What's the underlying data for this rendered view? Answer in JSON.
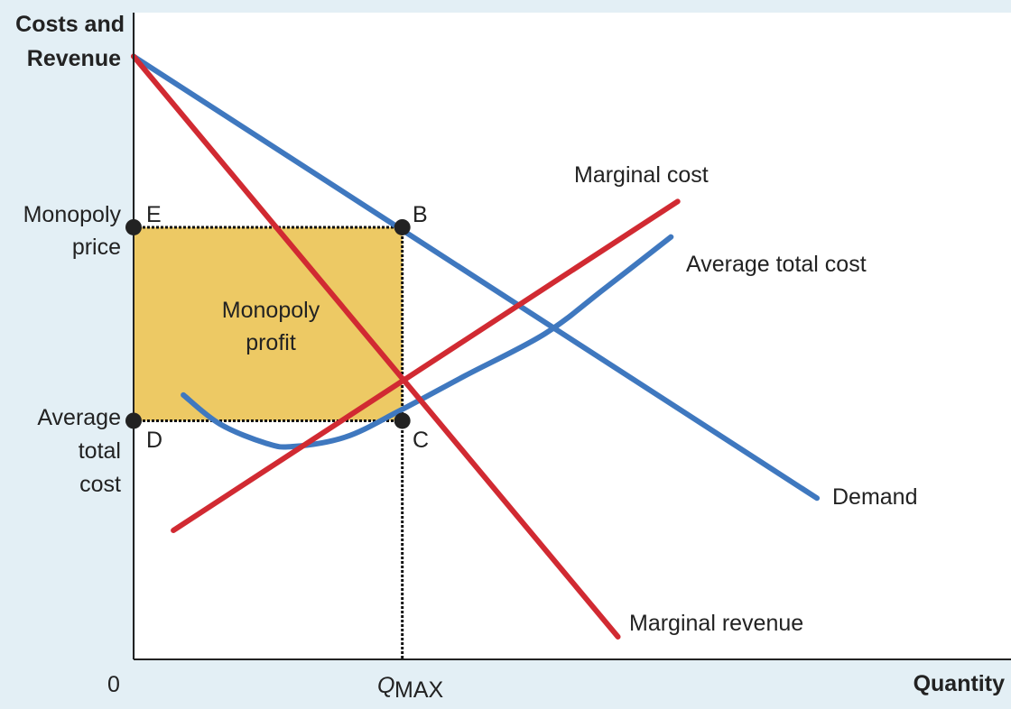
{
  "chart_data": {
    "type": "line",
    "title": "",
    "ylabel": [
      "Costs and",
      "Revenue"
    ],
    "xlabel": "Quantity",
    "origin_label": "0",
    "xlim": [
      0,
      10
    ],
    "ylim": [
      0,
      10
    ],
    "x_tick_label": {
      "main": "Q",
      "sub": "MAX"
    },
    "y_tick_labels": {
      "monopoly_price": [
        "Monopoly",
        "price"
      ],
      "average_total_cost": [
        "Average",
        "total",
        "cost"
      ]
    },
    "series": [
      {
        "name": "Demand",
        "color": "#3f78bf",
        "points": [
          [
            0,
            9.35
          ],
          [
            10.3,
            2.5
          ]
        ]
      },
      {
        "name": "Marginal revenue",
        "color": "#d12a32",
        "points": [
          [
            0,
            9.35
          ],
          [
            7.3,
            0.35
          ]
        ]
      },
      {
        "name": "Marginal cost",
        "color": "#d12a32",
        "points": [
          [
            0.6,
            2.0
          ],
          [
            8.2,
            7.1
          ]
        ]
      },
      {
        "name": "Average total cost",
        "color": "#3f78bf",
        "points": [
          [
            0.75,
            4.1
          ],
          [
            1.3,
            3.65
          ],
          [
            2.0,
            3.35
          ],
          [
            2.4,
            3.3
          ],
          [
            3.2,
            3.45
          ],
          [
            4.0,
            3.85
          ],
          [
            5.0,
            4.4
          ],
          [
            6.2,
            5.05
          ],
          [
            7.1,
            5.75
          ],
          [
            8.1,
            6.55
          ]
        ]
      }
    ],
    "curve_labels": [
      {
        "text": "Demand",
        "series": "Demand"
      },
      {
        "text": "Marginal revenue",
        "series": "Marginal revenue"
      },
      {
        "text": "Marginal cost",
        "series": "Marginal cost"
      },
      {
        "text": "Average total cost",
        "series": "Average total cost"
      }
    ],
    "points": [
      {
        "label": "E",
        "x": 0,
        "y": 6.7
      },
      {
        "label": "B",
        "x": 4.05,
        "y": 6.7
      },
      {
        "label": "D",
        "x": 0,
        "y": 3.7
      },
      {
        "label": "C",
        "x": 4.05,
        "y": 3.7
      }
    ],
    "q_max": 4.05,
    "monopoly_price": 6.7,
    "average_total_cost_value": 3.7,
    "profit_region": {
      "label": [
        "Monopoly",
        "profit"
      ],
      "color": "#edc964"
    },
    "axis_color": "#222222",
    "point_color": "#222222"
  }
}
